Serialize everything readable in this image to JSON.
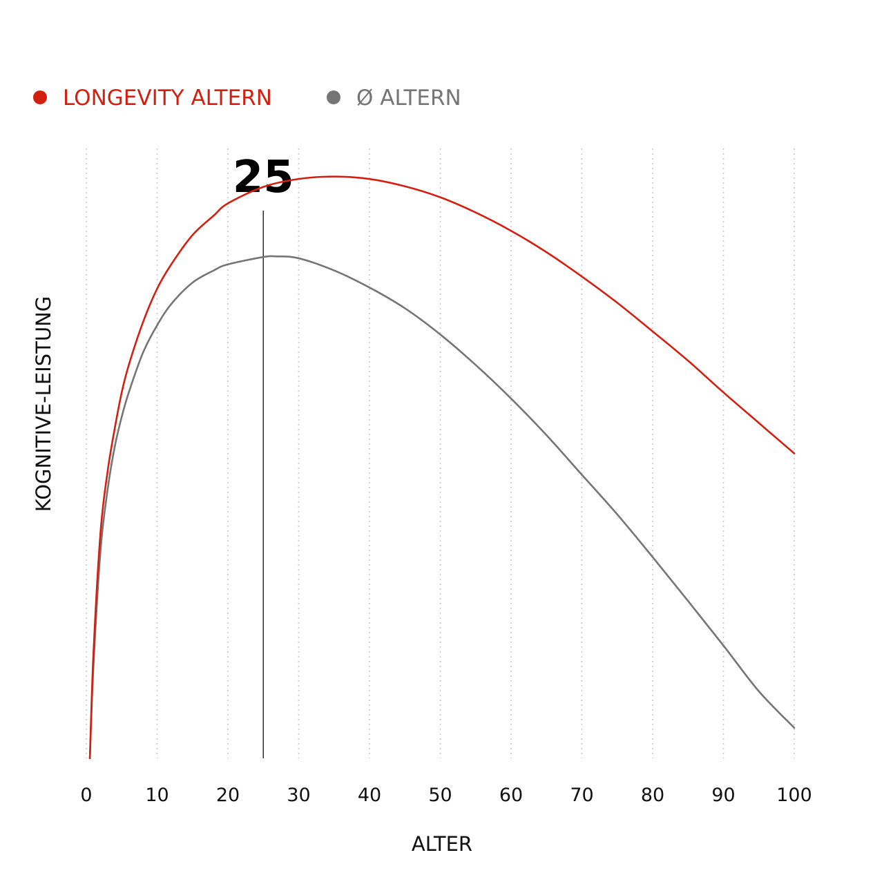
{
  "chart_data": {
    "type": "line",
    "title": "",
    "xlabel": "ALTER",
    "ylabel": "KOGNITIVE-LEISTUNG",
    "xlim": [
      0,
      100
    ],
    "ylim": [
      0,
      1
    ],
    "x_ticks": [
      0,
      10,
      20,
      30,
      40,
      50,
      60,
      70,
      80,
      90,
      100
    ],
    "grid": "vertical dotted",
    "legend_position": "top-left",
    "marker": {
      "x": 25,
      "label": "25"
    },
    "series": [
      {
        "name": "LONGEVITY ALTERN",
        "color": "#d21f10",
        "x": [
          0.5,
          1,
          2,
          3,
          4,
          5,
          6,
          8,
          10,
          12,
          15,
          18,
          20,
          25,
          30,
          35,
          40,
          45,
          50,
          55,
          60,
          65,
          70,
          75,
          80,
          85,
          90,
          95,
          100
        ],
        "y": [
          0.0,
          0.17,
          0.37,
          0.47,
          0.54,
          0.6,
          0.645,
          0.715,
          0.77,
          0.81,
          0.858,
          0.89,
          0.91,
          0.937,
          0.95,
          0.954,
          0.95,
          0.938,
          0.92,
          0.895,
          0.865,
          0.83,
          0.79,
          0.747,
          0.7,
          0.652,
          0.6,
          0.55,
          0.5
        ]
      },
      {
        "name": "Ø ALTERN",
        "color": "#757575",
        "x": [
          0.5,
          1,
          2,
          3,
          4,
          5,
          6,
          8,
          10,
          12,
          15,
          18,
          20,
          25,
          27,
          30,
          35,
          40,
          45,
          50,
          55,
          60,
          65,
          70,
          75,
          80,
          85,
          90,
          95,
          100
        ],
        "y": [
          0.0,
          0.15,
          0.34,
          0.44,
          0.51,
          0.56,
          0.6,
          0.665,
          0.71,
          0.745,
          0.78,
          0.8,
          0.81,
          0.822,
          0.823,
          0.82,
          0.8,
          0.772,
          0.738,
          0.695,
          0.645,
          0.59,
          0.53,
          0.465,
          0.4,
          0.33,
          0.258,
          0.185,
          0.11,
          0.05
        ]
      }
    ]
  }
}
